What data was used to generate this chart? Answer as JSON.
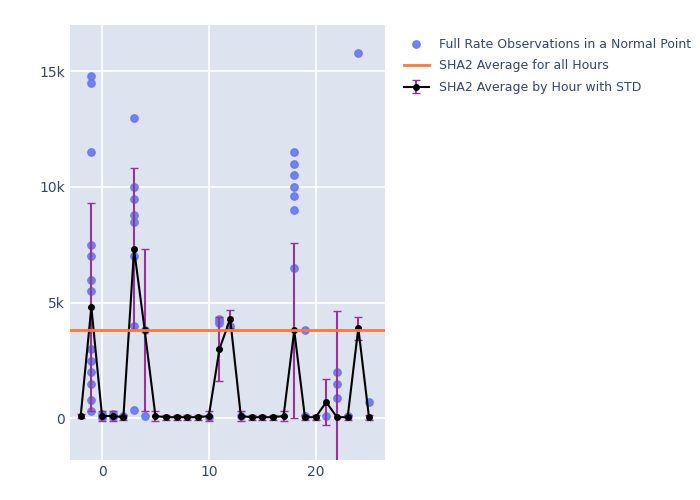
{
  "background_color": "#dde3ef",
  "figure_background": "#ffffff",
  "scatter_color": "#6677ee",
  "line_color": "#000000",
  "errorbar_color": "#993399",
  "hline_color": "#ff7733",
  "hline_value": 3800,
  "xlim": [
    -3,
    26.5
  ],
  "ylim": [
    -1800,
    17000
  ],
  "yticks": [
    0,
    5000,
    10000,
    15000
  ],
  "ytick_labels": [
    "0",
    "5k",
    "10k",
    "15k"
  ],
  "xticks": [
    0,
    10,
    20
  ],
  "legend_labels": [
    "Full Rate Observations in a Normal Point",
    "SHA2 Average by Hour with STD",
    "SHA2 Average for all Hours"
  ],
  "avg_x": [
    -2,
    -1,
    0,
    1,
    2,
    3,
    4,
    5,
    6,
    7,
    8,
    9,
    10,
    11,
    12,
    13,
    14,
    15,
    16,
    17,
    18,
    19,
    20,
    21,
    22,
    23,
    24,
    25
  ],
  "avg_y": [
    100,
    4800,
    100,
    100,
    50,
    7300,
    3800,
    100,
    50,
    50,
    50,
    50,
    100,
    3000,
    4300,
    100,
    50,
    50,
    50,
    100,
    3800,
    50,
    50,
    700,
    50,
    50,
    3900,
    50
  ],
  "avg_err": [
    100,
    4500,
    200,
    200,
    100,
    3500,
    3500,
    200,
    100,
    100,
    100,
    100,
    200,
    1400,
    400,
    200,
    100,
    100,
    100,
    200,
    3800,
    100,
    100,
    1000,
    4600,
    100,
    500,
    100
  ],
  "scatter_x": [
    -1,
    -1,
    -1,
    -1,
    -1,
    -1,
    -1,
    -1,
    -1,
    -1,
    -1,
    -1,
    -1,
    0,
    0,
    0,
    0,
    0,
    1,
    1,
    1,
    2,
    3,
    3,
    3,
    3,
    3,
    3,
    3,
    3,
    4,
    4,
    10,
    11,
    11,
    11,
    12,
    13,
    18,
    18,
    18,
    18,
    18,
    18,
    18,
    19,
    19,
    21,
    22,
    22,
    22,
    23,
    24,
    25
  ],
  "scatter_y": [
    14800,
    14500,
    11500,
    7500,
    7000,
    6000,
    5500,
    3000,
    2500,
    2000,
    1500,
    800,
    300,
    200,
    100,
    100,
    50,
    50,
    200,
    100,
    50,
    100,
    13000,
    10000,
    9500,
    8800,
    8500,
    7000,
    4000,
    350,
    3800,
    100,
    50,
    4300,
    4200,
    4100,
    4000,
    100,
    11500,
    11000,
    10500,
    10000,
    9600,
    9000,
    6500,
    3800,
    100,
    100,
    2000,
    1500,
    900,
    100,
    15800,
    700
  ]
}
